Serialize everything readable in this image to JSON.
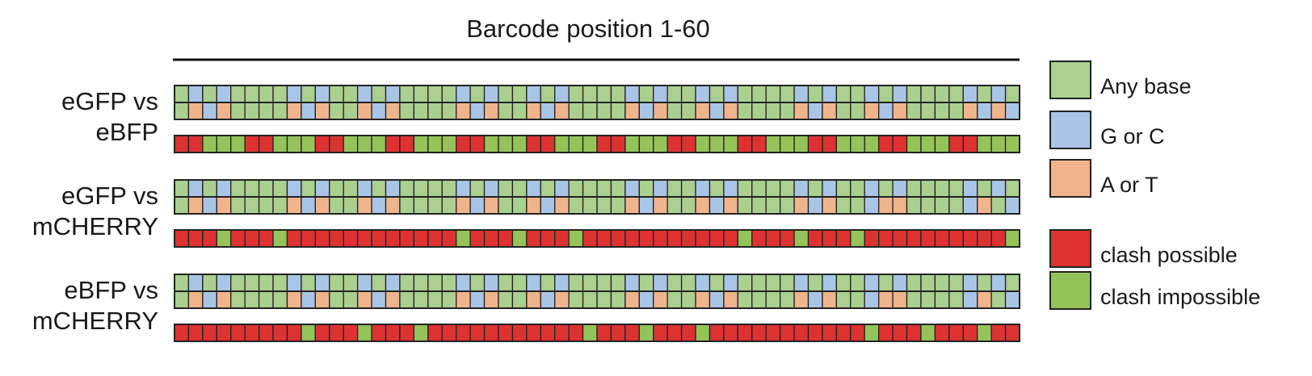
{
  "title": "Barcode position 1-60",
  "colors": {
    "any_base": "#aacf8e",
    "g_or_c": "#a9c5e6",
    "a_or_t": "#f0b48c",
    "clash_possible": "#dd3232",
    "clash_impossible": "#94c35a",
    "grid_line": "#222222"
  },
  "legend": [
    {
      "label": "Any base",
      "color_key": "any_base"
    },
    {
      "label": "G or C",
      "color_key": "g_or_c"
    },
    {
      "label": "A or T",
      "color_key": "a_or_t"
    },
    {
      "label": "clash possible",
      "color_key": "clash_possible"
    },
    {
      "label": "clash impossible",
      "color_key": "clash_impossible"
    }
  ],
  "comparisons": [
    {
      "label_line1": "eGFP vs",
      "label_line2": "eBFP",
      "row_a": "AGAGAAAAGAGAAGAGAAAAGAGAAGAGAAAAGAGAAGAGAAAAGAGAAGAGAAAAGAGA",
      "row_b": "ATGTAAAATGTAATGTAAAATGTAATGTAAAATGTAATGTAAAATGTAATGTAAAATGTG",
      "clash": "PPIIIPPIIIPPIIIPPIIIPPIIIPPIIIPPIIIPPIIIPPIIIPPIIIPPIIIPPIII"
    },
    {
      "label_line1": "eGFP vs",
      "label_line2": "mCHERRY",
      "row_a": "AGAGAAAAGAGAAGAGAAAAGAGAAGAGAAAAGAGAAGAGAAAAGAGAAGAGAAAAGAGA",
      "row_b": "ATGTAAAATGTAATGTAAAATGTAATGTAAAATGTAATGTAAAATGTAAGTTAAAAGTAG",
      "clash": "PPPIPPPIPPPPPPPPPPPPIPPPIPPPIPPPPPPPPPPPIPPPIPPPIPPPPPPPPPPI"
    },
    {
      "label_line1": "eBFP vs",
      "label_line2": "mCHERRY",
      "row_a": "AGAGAAAAGAGAAGAGAAAAGAGAAGAGAAAAGAGAAGAGAAAAGAGAAGAGAAAAGAGA",
      "row_b": "ATGTAAAATGTAATGTAAAATGTAATGTAAAATGTAATGTAAAATGTAAGTTAAAAGTAG",
      "clash": "PPPPPPPPPIPPPIPPPIPPPPPPPPPPPIPPPIPPPIPPPPPPPPPPPIPPPIPPPIPP"
    }
  ]
}
